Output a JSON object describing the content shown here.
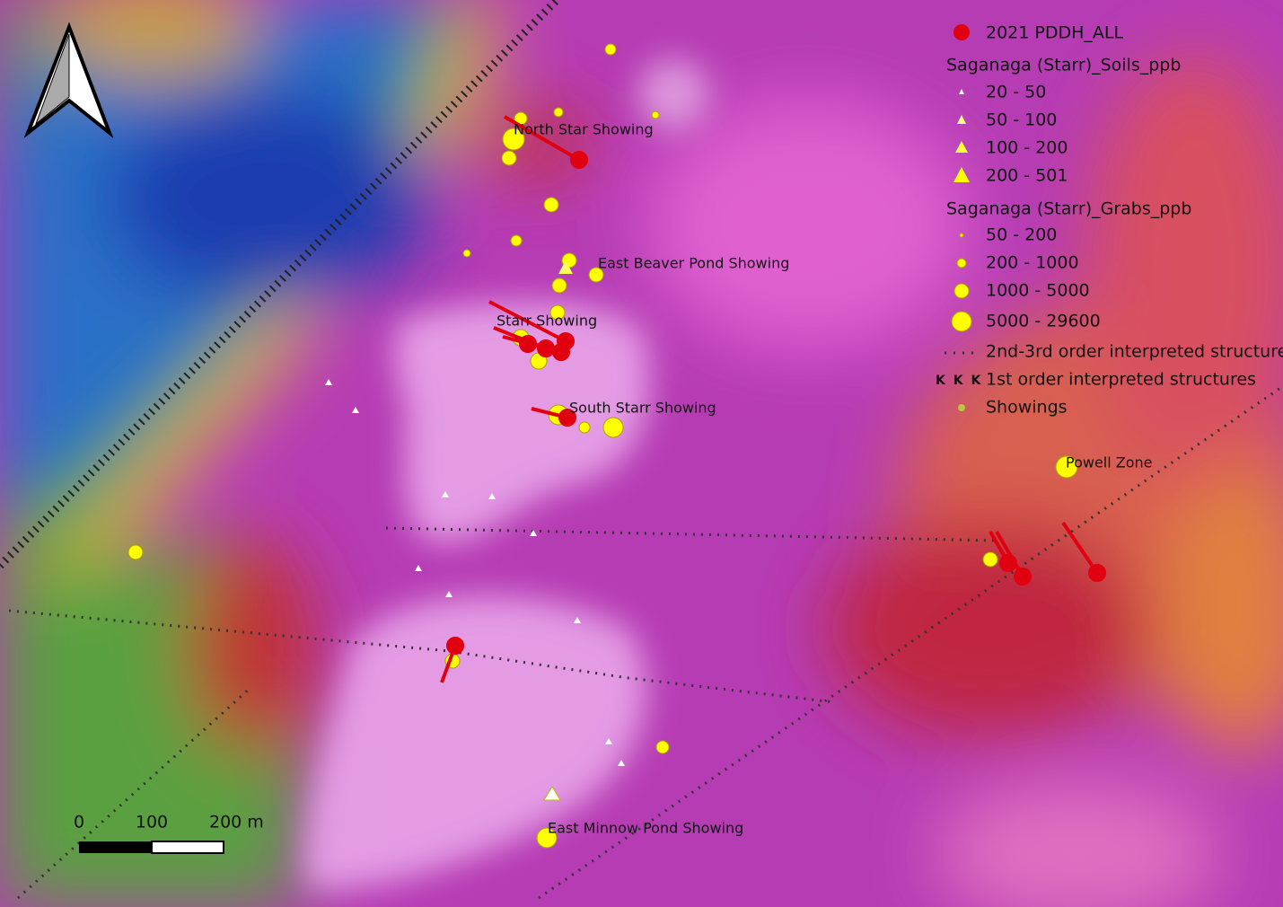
{
  "map_labels": [
    "North Star Showing",
    "East Beaver Pond Showing",
    "Starr Showing",
    "South Starr Showing",
    "Powell Zone",
    "East Minnow Pond Showing"
  ],
  "legend": {
    "drill_holes": "2021 PDDH_ALL",
    "soils": {
      "title": "Saganaga (Starr)_Soils_ppb",
      "classes": [
        "20 - 50",
        "50 - 100",
        "100 - 200",
        "200 - 501"
      ]
    },
    "grabs": {
      "title": "Saganaga (Starr)_Grabs_ppb",
      "classes": [
        "50 - 200",
        "200 - 1000",
        "1000 - 5000",
        "5000 - 29600"
      ]
    },
    "structures_2nd": "2nd-3rd order interpreted structures",
    "structures_1st": "1st order interpreted structures",
    "structures_1st_symbol": "K K K",
    "showings": "Showings"
  },
  "scale_bar": {
    "labels": [
      "0",
      "100",
      "200 m"
    ]
  }
}
